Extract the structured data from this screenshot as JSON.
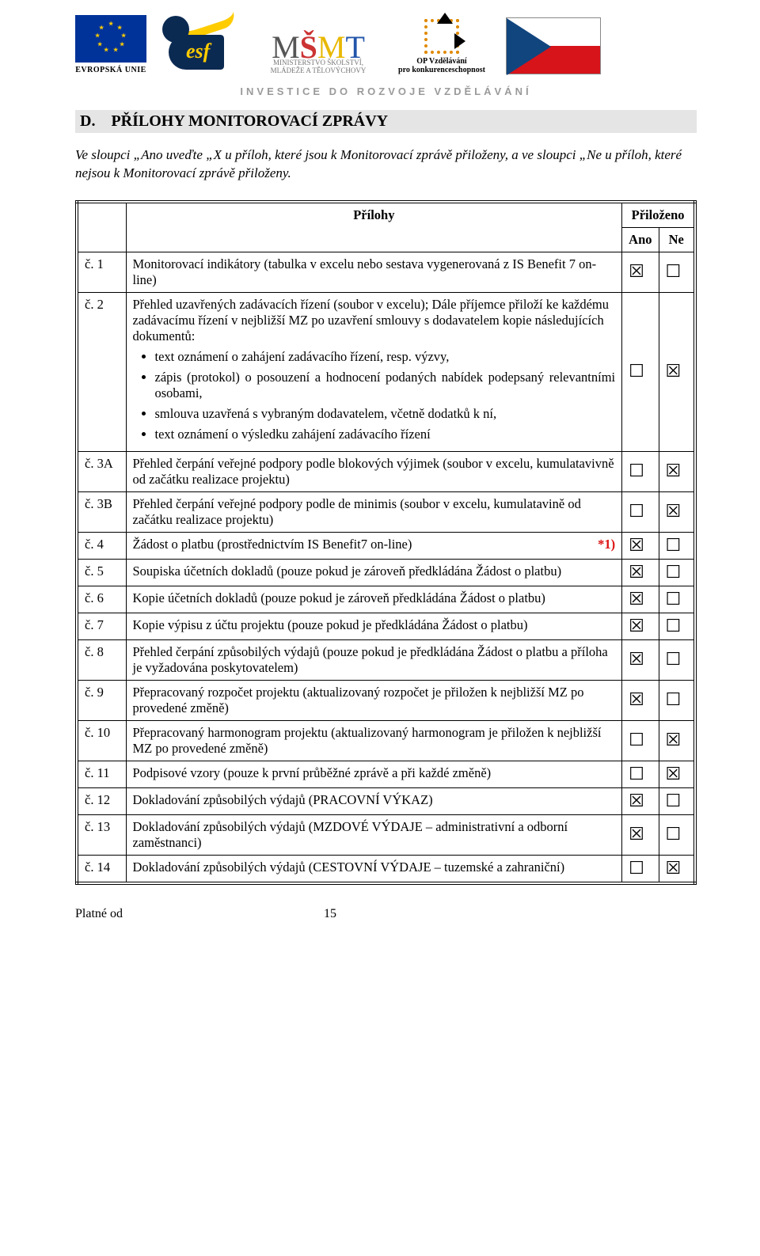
{
  "logos": {
    "eu_label": "EVROPSKÁ UNIE",
    "esf_text": "esf",
    "msmt_line1": "MINISTERSTVO ŠKOLSTVÍ,",
    "msmt_line2": "MLÁDEŽE A TĚLOVÝCHOVY",
    "op_line1": "OP Vzdělávání",
    "op_line2": "pro konkurenceschopnost"
  },
  "tagline": "INVESTICE DO ROZVOJE VZDĚLÁVÁNÍ",
  "section_letter": "D.",
  "section_title": "PŘÍLOHY MONITOROVACÍ ZPRÁVY",
  "intro": "Ve sloupci „Ano uveďte „X u příloh, které jsou k Monitorovací zprávě přiloženy, a ve sloupci „Ne u příloh, které nejsou k Monitorovací zprávě přiloženy.",
  "header_prilohy": "Přílohy",
  "header_prilozeno": "Přiloženo",
  "header_ano": "Ano",
  "header_ne": "Ne",
  "footer_left": "Platné od",
  "footer_page": "15",
  "checkbox_glyphs": {
    "checked": "☒",
    "unchecked": "☐"
  },
  "rows": [
    {
      "num": "č. 1",
      "desc": "Monitorovací indikátory (tabulka v excelu nebo sestava vygenerovaná z IS Benefit 7 on-line)",
      "ano": true,
      "ne": false
    },
    {
      "num": "č. 2",
      "desc_pre": "Přehled uzavřených zadávacích řízení (soubor v excelu); Dále příjemce přiloží ke každému zadávacímu řízení v nejbližší MZ po uzavření smlouvy s dodavatelem kopie následujících dokumentů:",
      "bullets": [
        "text oznámení o zahájení zadávacího řízení, resp. výzvy,",
        "zápis (protokol)  o posouzení a hodnocení podaných nabídek podepsaný relevantními osobami,",
        "smlouva uzavřená s vybraným dodavatelem, včetně dodatků k ní,",
        "text oznámení o výsledku zahájení zadávacího řízení"
      ],
      "ano": false,
      "ne": true
    },
    {
      "num": "č. 3A",
      "desc": "Přehled čerpání veřejné podpory podle blokových výjimek (soubor v excelu, kumulatavivně od začátku realizace projektu)",
      "ano": false,
      "ne": true
    },
    {
      "num": "č. 3B",
      "desc": "Přehled čerpání veřejné podpory podle de minimis (soubor v excelu, kumulatavině od začátku realizace projektu)",
      "ano": false,
      "ne": true
    },
    {
      "num": "č. 4",
      "desc": "Žádost o platbu (prostřednictvím IS Benefit7 on-line)",
      "suffix_red": "*1)",
      "ano": true,
      "ne": false
    },
    {
      "num": "č. 5",
      "desc": "Soupiska účetních dokladů (pouze pokud je zároveň předkládána Žádost o platbu)",
      "ano": true,
      "ne": false
    },
    {
      "num": "č. 6",
      "desc": "Kopie účetních dokladů (pouze pokud je zároveň předkládána Žádost o platbu)",
      "ano": true,
      "ne": false
    },
    {
      "num": "č. 7",
      "desc": "Kopie výpisu z účtu projektu (pouze pokud je předkládána Žádost o platbu)",
      "ano": true,
      "ne": false
    },
    {
      "num": "č. 8",
      "desc": "Přehled čerpání způsobilých výdajů (pouze pokud je předkládána Žádost o platbu a příloha je vyžadována poskytovatelem)",
      "ano": true,
      "ne": false
    },
    {
      "num": "č. 9",
      "desc": "Přepracovaný rozpočet projektu (aktualizovaný rozpočet je přiložen k nejbližší MZ po provedené změně)",
      "ano": true,
      "ne": false
    },
    {
      "num": "č. 10",
      "desc": "Přepracovaný harmonogram projektu (aktualizovaný harmonogram je přiložen k nejbližší MZ po provedené změně)",
      "ano": false,
      "ne": true
    },
    {
      "num": "č. 11",
      "desc": "Podpisové vzory (pouze k první průběžné zprávě a při každé změně)",
      "ano": false,
      "ne": true
    },
    {
      "num": "č. 12",
      "desc": "Dokladování způsobilých výdajů (PRACOVNÍ VÝKAZ)",
      "ano": true,
      "ne": false
    },
    {
      "num": "č. 13",
      "desc": "Dokladování způsobilých výdajů (MZDOVÉ VÝDAJE – administrativní a odborní zaměstnanci)",
      "ano": true,
      "ne": false
    },
    {
      "num": "č. 14",
      "desc": "Dokladování způsobilých výdajů (CESTOVNÍ VÝDAJE – tuzemské a zahraniční)",
      "ano": false,
      "ne": true
    }
  ]
}
